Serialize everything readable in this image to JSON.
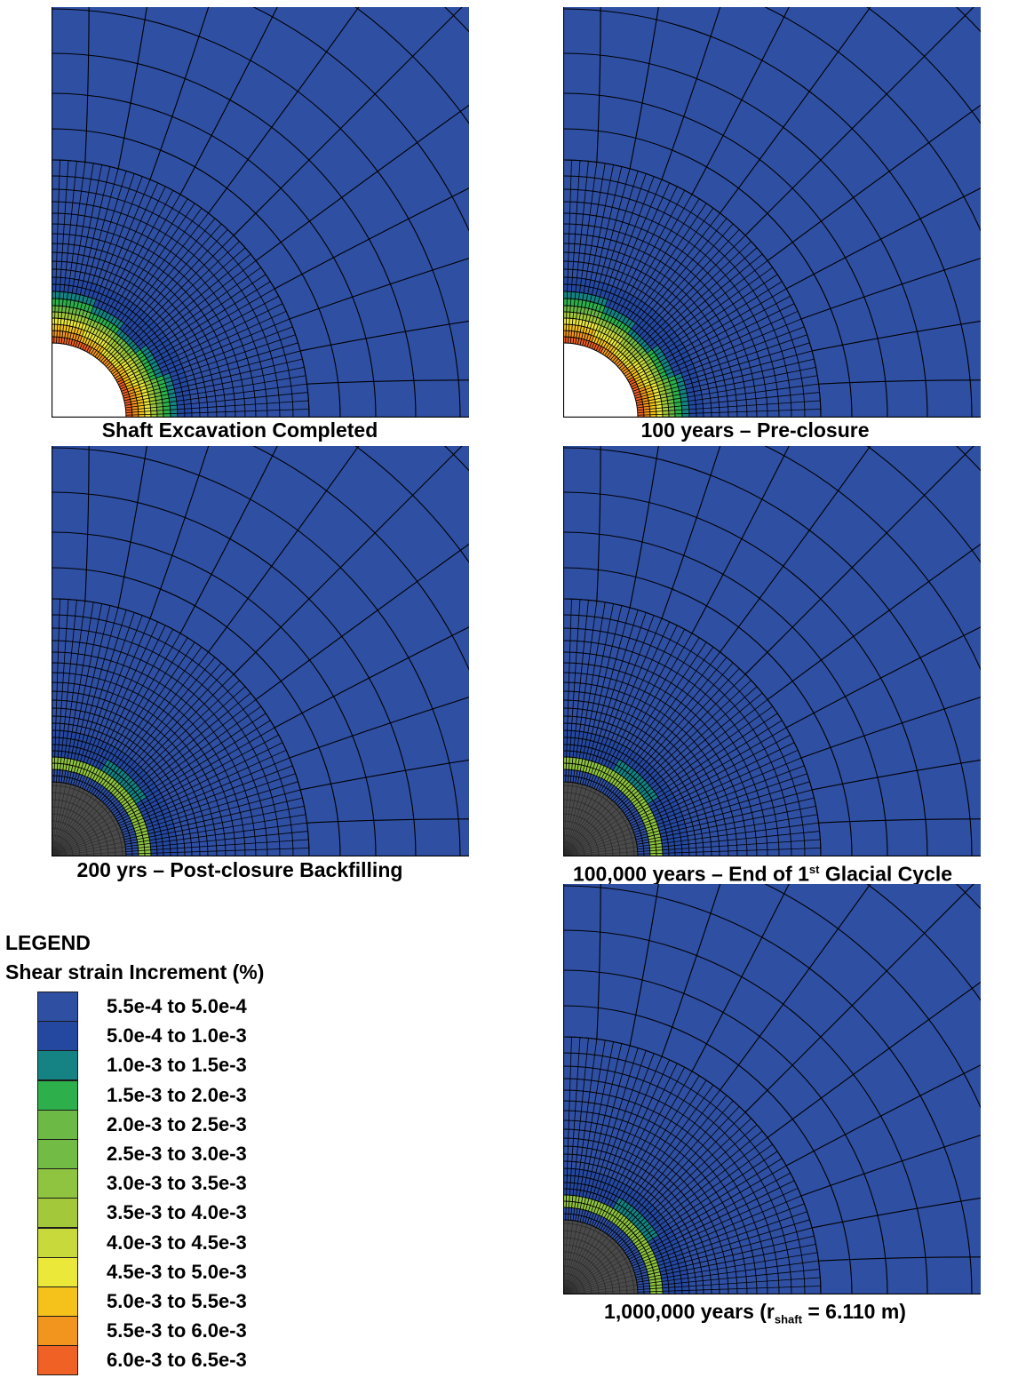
{
  "panels": [
    {
      "id": "p1",
      "caption": "Shaft Excavation Completed",
      "state": "excavation"
    },
    {
      "id": "p2",
      "caption": "100 years – Pre-closure",
      "state": "excavation"
    },
    {
      "id": "p3",
      "caption": "200 yrs – Post-closure Backfilling",
      "state": "backfill"
    },
    {
      "id": "p4",
      "caption_main": "100,000 years – End of 1",
      "caption_sup": "st",
      "caption_end": " Glacial Cycle",
      "state": "backfill"
    },
    {
      "id": "p5",
      "caption_main": "1,000,000 years (r",
      "caption_sub": "shaft",
      "caption_end": " = 6.110 m)",
      "state": "backfill"
    }
  ],
  "legend": {
    "title": "LEGEND",
    "subtitle": "Shear strain Increment (%)",
    "items": [
      {
        "label": "5.5e-4  to 5.0e-4",
        "color": "#2f4fa3"
      },
      {
        "label": "5.0e-4  to 1.0e-3",
        "color": "#2448a0"
      },
      {
        "label": "1.0e-3  to 1.5e-3",
        "color": "#158283"
      },
      {
        "label": "1.5e-3  to 2.0e-3",
        "color": "#2db04b"
      },
      {
        "label": "2.0e-3  to 2.5e-3",
        "color": "#6cba45"
      },
      {
        "label": "2.5e-3  to 3.0e-3",
        "color": "#72bb44"
      },
      {
        "label": "3.0e-3  to 3.5e-3",
        "color": "#8ec440"
      },
      {
        "label": "3.5e-3  to 4.0e-3",
        "color": "#a3c93a"
      },
      {
        "label": "4.0e-3  to 4.5e-3",
        "color": "#c8d93b"
      },
      {
        "label": "4.5e-3  to 5.0e-3",
        "color": "#ebe83a"
      },
      {
        "label": "5.0e-3  to 5.5e-3",
        "color": "#f4c21b"
      },
      {
        "label": "5.5e-3  to 6.0e-3",
        "color": "#f2951f"
      },
      {
        "label": "6.0e-3  to 6.5e-3",
        "color": "#ef6124"
      }
    ]
  },
  "colors": {
    "background_band": "#2f4fa3",
    "mesh_line": "#000000",
    "backfill": "#4a4a4a",
    "backfill_mesh": "#2a2a2a"
  }
}
